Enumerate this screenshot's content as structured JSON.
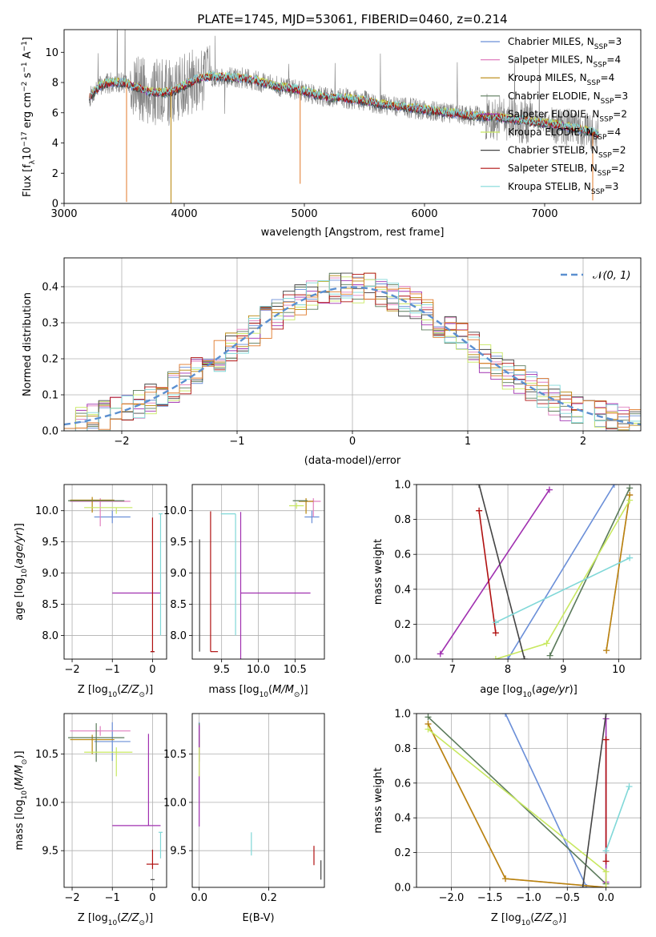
{
  "colors": {
    "Chabrier MILES": "#6b8fd8",
    "Salpeter MILES": "#e07fbf",
    "Kroupa MILES": "#b8860b",
    "Chabrier ELODIE": "#5a7a5a",
    "Salpeter ELODIE": "#a030b0",
    "Kroupa ELODIE": "#c8e860",
    "Chabrier STELIB": "#444444",
    "Salpeter STELIB": "#b01010",
    "Kroupa STELIB": "#80d8d8",
    "data": "#808080",
    "gauss": "#5b8fd0",
    "orange": "#e07828"
  },
  "chart_data": [
    {
      "id": "spectrum",
      "type": "line",
      "title": "PLATE=1745, MJD=53061, FIBERID=0460, z=0.214",
      "xlabel": "wavelength [Angstrom, rest frame]",
      "ylabel": "Flux [fλ10⁻¹⁷ erg cm⁻² s⁻¹ A⁻¹]",
      "xlim": [
        3000,
        7800
      ],
      "ylim": [
        0,
        11.5
      ],
      "xticks": [
        3000,
        4000,
        5000,
        6000,
        7000
      ],
      "yticks": [
        0,
        2,
        4,
        6,
        8,
        10
      ],
      "legend_position": "top-right",
      "legend": [
        {
          "series": "Chabrier MILES",
          "base": "Chabrier MILES, N",
          "sub": "SSP",
          "tail": "=3"
        },
        {
          "series": "Salpeter MILES",
          "base": "Salpeter MILES, N",
          "sub": "SSP",
          "tail": "=4"
        },
        {
          "series": "Kroupa MILES",
          "base": "Kroupa MILES, N",
          "sub": "SSP",
          "tail": "=4"
        },
        {
          "series": "Chabrier ELODIE",
          "base": "Chabrier ELODIE, N",
          "sub": "SSP",
          "tail": "=3"
        },
        {
          "series": "Salpeter ELODIE",
          "base": "Salpeter ELODIE, N",
          "sub": "SSP",
          "tail": "=2"
        },
        {
          "series": "Kroupa ELODIE",
          "base": "Kroupa ELODIE, N",
          "sub": "SSP",
          "tail": "=4"
        },
        {
          "series": "Chabrier STELIB",
          "base": "Chabrier STELIB, N",
          "sub": "SSP",
          "tail": "=2"
        },
        {
          "series": "Salpeter STELIB",
          "base": "Salpeter STELIB, N",
          "sub": "SSP",
          "tail": "=2"
        },
        {
          "series": "Kroupa STELIB",
          "base": "Kroupa STELIB, N",
          "sub": "SSP",
          "tail": "=3"
        }
      ],
      "continuum_x": [
        3210,
        3300,
        3400,
        3500,
        3600,
        3700,
        3800,
        3900,
        4000,
        4100,
        4200,
        4300,
        4400,
        4500,
        4600,
        4700,
        4800,
        4900,
        5000,
        5100,
        5200,
        5300,
        5400,
        5500,
        5600,
        5700,
        5800,
        5900,
        6000,
        6100,
        6200,
        6300,
        6400,
        6500,
        6600,
        6700,
        6800,
        6900,
        7000,
        7100,
        7200,
        7300,
        7400,
        7450
      ],
      "continuum_y": [
        7.0,
        7.8,
        8.0,
        8.0,
        7.7,
        7.4,
        7.3,
        7.4,
        7.8,
        8.2,
        8.4,
        8.4,
        8.3,
        8.3,
        8.1,
        7.9,
        7.7,
        7.6,
        7.4,
        7.2,
        7.0,
        7.0,
        6.9,
        6.8,
        6.6,
        6.5,
        6.4,
        6.3,
        6.2,
        6.1,
        6.0,
        5.9,
        5.8,
        5.75,
        5.7,
        5.6,
        5.5,
        5.4,
        5.3,
        5.2,
        5.05,
        4.9,
        4.7,
        4.55
      ]
    },
    {
      "id": "residuals",
      "type": "histogram",
      "xlabel": "(data-model)/error",
      "ylabel": "Normed distribution",
      "xlim": [
        -2.5,
        2.5
      ],
      "ylim": [
        0,
        0.48
      ],
      "xticks": [
        -2,
        -1,
        0,
        1,
        2
      ],
      "yticks": [
        0.0,
        0.1,
        0.2,
        0.3,
        0.4
      ],
      "bin_edges_from": -2.5,
      "bin_width": 0.1,
      "legend_position": "top-right",
      "legend": "N(0, 1)"
    },
    {
      "id": "age-vs-Z",
      "type": "errorbar",
      "xlabel": "Z [log10(Z/Z⊙)]",
      "ylabel": "age  [log10(age/yr)]",
      "xlim": [
        -2.2,
        0.35
      ],
      "ylim": [
        7.62,
        10.42
      ],
      "xticks": [
        -2,
        -1,
        0
      ],
      "yticks": [
        8.0,
        8.5,
        9.0,
        9.5,
        10.0
      ],
      "points": [
        {
          "series": "Chabrier MILES",
          "x": -1.0,
          "xerr": [
            0.45,
            0.45
          ],
          "y": 9.9,
          "yerr": [
            0.1,
            0.1
          ]
        },
        {
          "series": "Salpeter MILES",
          "x": -1.3,
          "xerr": [
            0.75,
            0.75
          ],
          "y": 10.15,
          "yerr": [
            0.4,
            0.05
          ]
        },
        {
          "series": "Kroupa MILES",
          "x": -1.5,
          "xerr": [
            0.55,
            0.55
          ],
          "y": 10.17,
          "yerr": [
            0.2,
            0.05
          ]
        },
        {
          "series": "Chabrier ELODIE",
          "x": -1.4,
          "xerr": [
            0.7,
            0.7
          ],
          "y": 10.16,
          "yerr": [
            0.0,
            0.0
          ]
        },
        {
          "series": "Salpeter ELODIE",
          "x": -0.1,
          "xerr": [
            0.9,
            0.3
          ],
          "y": 8.68,
          "yerr": [
            0.0,
            0.0
          ]
        },
        {
          "series": "Kroupa ELODIE",
          "x": -0.9,
          "xerr": [
            0.8,
            0.4
          ],
          "y": 10.05,
          "yerr": [
            0.1,
            0.0
          ]
        },
        {
          "series": "Chabrier STELIB",
          "x": 0.0,
          "xerr": [
            0.05,
            0.05
          ],
          "y": 7.74,
          "yerr": [
            0.0,
            0.0
          ]
        },
        {
          "series": "Salpeter STELIB",
          "x": 0.0,
          "xerr": [
            0.05,
            0.05
          ],
          "y": 7.74,
          "yerr": [
            0.0,
            2.15
          ]
        },
        {
          "series": "Kroupa STELIB",
          "x": 0.2,
          "xerr": [
            0.05,
            0.05
          ],
          "y": 9.95,
          "yerr": [
            1.95,
            0.0
          ]
        }
      ]
    },
    {
      "id": "age-vs-mass",
      "type": "errorbar",
      "xlabel": "mass [log10(M/M⊙)]",
      "xlim": [
        9.1,
        10.9
      ],
      "ylim": [
        7.62,
        10.42
      ],
      "xticks": [
        9.5,
        10.0,
        10.5
      ],
      "yticks": [
        8.0,
        8.5,
        9.0,
        9.5,
        10.0
      ],
      "points": [
        {
          "series": "Chabrier MILES",
          "x": 10.73,
          "xerr": [
            0.1,
            0.1
          ],
          "y": 9.9,
          "yerr": [
            0.1,
            0.1
          ]
        },
        {
          "series": "Salpeter MILES",
          "x": 10.75,
          "xerr": [
            0.1,
            0.1
          ],
          "y": 10.15,
          "yerr": [
            0.25,
            0.05
          ]
        },
        {
          "series": "Kroupa MILES",
          "x": 10.65,
          "xerr": [
            0.1,
            0.1
          ],
          "y": 10.15,
          "yerr": [
            0.2,
            0.05
          ]
        },
        {
          "series": "Chabrier ELODIE",
          "x": 10.62,
          "xerr": [
            0.15,
            0.05
          ],
          "y": 10.16,
          "yerr": [
            0.0,
            0.0
          ]
        },
        {
          "series": "Salpeter ELODIE",
          "x": 9.76,
          "xerr": [
            0.0,
            0.95
          ],
          "y": 8.68,
          "yerr": [
            1.5,
            1.3
          ]
        },
        {
          "series": "Kroupa ELODIE",
          "x": 10.52,
          "xerr": [
            0.1,
            0.1
          ],
          "y": 10.08,
          "yerr": [
            0.05,
            0.05
          ]
        },
        {
          "series": "Chabrier STELIB",
          "x": 9.2,
          "xerr": [
            0.0,
            0.0
          ],
          "y": 7.74,
          "yerr": [
            0.0,
            1.8
          ]
        },
        {
          "series": "Salpeter STELIB",
          "x": 9.35,
          "xerr": [
            0.0,
            0.1
          ],
          "y": 7.74,
          "yerr": [
            0.0,
            2.25
          ]
        },
        {
          "series": "Kroupa STELIB",
          "x": 9.69,
          "xerr": [
            0.2,
            0.0
          ],
          "y": 9.95,
          "yerr": [
            1.95,
            0.0
          ]
        }
      ]
    },
    {
      "id": "mass-weight-vs-age",
      "type": "line",
      "xlabel": "age  [log10(age/yr)]",
      "ylabel": "mass weight",
      "xlim": [
        6.35,
        10.4
      ],
      "ylim": [
        0,
        1
      ],
      "xticks": [
        7,
        8,
        9,
        10
      ],
      "yticks": [
        0.0,
        0.2,
        0.4,
        0.6,
        0.8,
        1.0
      ],
      "series": [
        {
          "series": "Chabrier MILES",
          "x": [
            8.0,
            9.92
          ],
          "y": [
            0.0,
            1.0
          ]
        },
        {
          "series": "Salpeter MILES",
          "x": [
            9.78,
            10.2
          ],
          "y": [
            0.05,
            0.94
          ]
        },
        {
          "series": "Kroupa MILES",
          "x": [
            9.78,
            10.2
          ],
          "y": [
            0.05,
            0.94
          ]
        },
        {
          "series": "Chabrier ELODIE",
          "x": [
            8.76,
            10.2
          ],
          "y": [
            0.02,
            0.98
          ]
        },
        {
          "series": "Salpeter ELODIE",
          "x": [
            6.78,
            8.75
          ],
          "y": [
            0.03,
            0.97
          ]
        },
        {
          "series": "Kroupa ELODIE",
          "x": [
            7.78,
            8.7,
            10.2
          ],
          "y": [
            0.0,
            0.09,
            0.91
          ]
        },
        {
          "series": "Chabrier STELIB",
          "x": [
            7.48,
            8.3
          ],
          "y": [
            1.0,
            0.0
          ]
        },
        {
          "series": "Salpeter STELIB",
          "x": [
            7.48,
            7.78
          ],
          "y": [
            0.85,
            0.15
          ]
        },
        {
          "series": "Kroupa STELIB",
          "x": [
            7.78,
            10.2
          ],
          "y": [
            0.21,
            0.58
          ]
        }
      ]
    },
    {
      "id": "mass-vs-Z",
      "type": "errorbar",
      "xlabel": "Z [log10(Z/Z⊙)]",
      "ylabel": "mass [log10(M/M⊙)]",
      "xlim": [
        -2.2,
        0.35
      ],
      "ylim": [
        9.12,
        10.92
      ],
      "xticks": [
        -2,
        -1,
        0
      ],
      "yticks": [
        9.5,
        10.0,
        10.5
      ],
      "points": [
        {
          "series": "Chabrier MILES",
          "x": -1.0,
          "xerr": [
            0.45,
            0.45
          ],
          "y": 10.63,
          "yerr": [
            0.2,
            0.2
          ]
        },
        {
          "series": "Salpeter MILES",
          "x": -1.3,
          "xerr": [
            0.75,
            0.75
          ],
          "y": 10.74,
          "yerr": [
            0.05,
            0.05
          ]
        },
        {
          "series": "Kroupa MILES",
          "x": -1.5,
          "xerr": [
            0.55,
            0.55
          ],
          "y": 10.65,
          "yerr": [
            0.15,
            0.05
          ]
        },
        {
          "series": "Chabrier ELODIE",
          "x": -1.4,
          "xerr": [
            0.7,
            0.7
          ],
          "y": 10.67,
          "yerr": [
            0.25,
            0.15
          ]
        },
        {
          "series": "Salpeter ELODIE",
          "x": -0.1,
          "xerr": [
            0.9,
            0.3
          ],
          "y": 9.76,
          "yerr": [
            0.0,
            0.95
          ]
        },
        {
          "series": "Kroupa ELODIE",
          "x": -0.9,
          "xerr": [
            0.8,
            0.4
          ],
          "y": 10.52,
          "yerr": [
            0.25,
            0.05
          ]
        },
        {
          "series": "Chabrier STELIB",
          "x": 0.0,
          "xerr": [
            0.05,
            0.05
          ],
          "y": 9.2,
          "yerr": [
            0.0,
            0.0
          ]
        },
        {
          "series": "Salpeter STELIB",
          "x": 0.0,
          "xerr": [
            0.15,
            0.15
          ],
          "y": 9.36,
          "yerr": [
            0.05,
            0.15
          ]
        },
        {
          "series": "Kroupa STELIB",
          "x": 0.2,
          "xerr": [
            0.05,
            0.05
          ],
          "y": 9.69,
          "yerr": [
            0.27,
            0.0
          ]
        }
      ]
    },
    {
      "id": "mass-vs-EBV",
      "type": "errorbar",
      "xlabel": "E(B-V)",
      "xlim": [
        -0.02,
        0.36
      ],
      "ylim": [
        9.12,
        10.92
      ],
      "xticks": [
        0.0,
        0.2
      ],
      "yticks": [
        9.5,
        10.0,
        10.5
      ],
      "points": [
        {
          "series": "Chabrier MILES",
          "x": 0.0,
          "xerr": [
            0.0,
            0.0
          ],
          "y": 10.63,
          "yerr": [
            0.2,
            0.2
          ]
        },
        {
          "series": "Salpeter MILES",
          "x": 0.0,
          "xerr": [
            0.0,
            0.0
          ],
          "y": 10.74,
          "yerr": [
            0.05,
            0.05
          ]
        },
        {
          "series": "Kroupa MILES",
          "x": 0.0,
          "xerr": [
            0.0,
            0.0
          ],
          "y": 10.65,
          "yerr": [
            0.15,
            0.05
          ]
        },
        {
          "series": "Chabrier ELODIE",
          "x": 0.0,
          "xerr": [
            0.0,
            0.0
          ],
          "y": 10.67,
          "yerr": [
            0.25,
            0.15
          ]
        },
        {
          "series": "Salpeter ELODIE",
          "x": 0.0,
          "xerr": [
            0.0,
            0.0
          ],
          "y": 10.45,
          "yerr": [
            0.7,
            0.35
          ]
        },
        {
          "series": "Kroupa ELODIE",
          "x": 0.0,
          "xerr": [
            0.0,
            0.0
          ],
          "y": 10.52,
          "yerr": [
            0.25,
            0.05
          ]
        },
        {
          "series": "Chabrier STELIB",
          "x": 0.35,
          "xerr": [
            0.0,
            0.0
          ],
          "y": 9.3,
          "yerr": [
            0.1,
            0.1
          ]
        },
        {
          "series": "Salpeter STELIB",
          "x": 0.33,
          "xerr": [
            0.0,
            0.0
          ],
          "y": 9.45,
          "yerr": [
            0.1,
            0.1
          ]
        },
        {
          "series": "Kroupa STELIB",
          "x": 0.15,
          "xerr": [
            0.0,
            0.0
          ],
          "y": 9.57,
          "yerr": [
            0.12,
            0.12
          ]
        }
      ]
    },
    {
      "id": "mass-weight-vs-Z",
      "type": "line",
      "xlabel": "Z [log10(Z/Z⊙)]",
      "ylabel": "mass weight",
      "xlim": [
        -2.45,
        0.45
      ],
      "ylim": [
        0,
        1
      ],
      "xticks": [
        -2.0,
        -1.5,
        -1.0,
        -0.5,
        0.0
      ],
      "yticks": [
        0.0,
        0.2,
        0.4,
        0.6,
        0.8,
        1.0
      ],
      "series": [
        {
          "series": "Chabrier MILES",
          "x": [
            -1.3,
            -0.25
          ],
          "y": [
            1.0,
            0.0
          ]
        },
        {
          "series": "Salpeter MILES",
          "x": [
            -2.3,
            -1.3,
            0.0
          ],
          "y": [
            0.94,
            0.05,
            0.0
          ]
        },
        {
          "series": "Kroupa MILES",
          "x": [
            -2.3,
            -1.3,
            0.0
          ],
          "y": [
            0.94,
            0.05,
            0.0
          ]
        },
        {
          "series": "Chabrier ELODIE",
          "x": [
            -2.3,
            0.0
          ],
          "y": [
            0.98,
            0.02
          ]
        },
        {
          "series": "Salpeter ELODIE",
          "x": [
            0.0,
            0.0
          ],
          "y": [
            0.03,
            0.97
          ]
        },
        {
          "series": "Kroupa ELODIE",
          "x": [
            -2.3,
            0.0,
            0.0
          ],
          "y": [
            0.91,
            0.09,
            0.0
          ]
        },
        {
          "series": "Chabrier STELIB",
          "x": [
            -0.3,
            0.0
          ],
          "y": [
            0.0,
            1.0
          ]
        },
        {
          "series": "Salpeter STELIB",
          "x": [
            0.0,
            0.0
          ],
          "y": [
            0.15,
            0.85
          ]
        },
        {
          "series": "Kroupa STELIB",
          "x": [
            0.0,
            0.3
          ],
          "y": [
            0.21,
            0.58
          ]
        }
      ]
    }
  ]
}
